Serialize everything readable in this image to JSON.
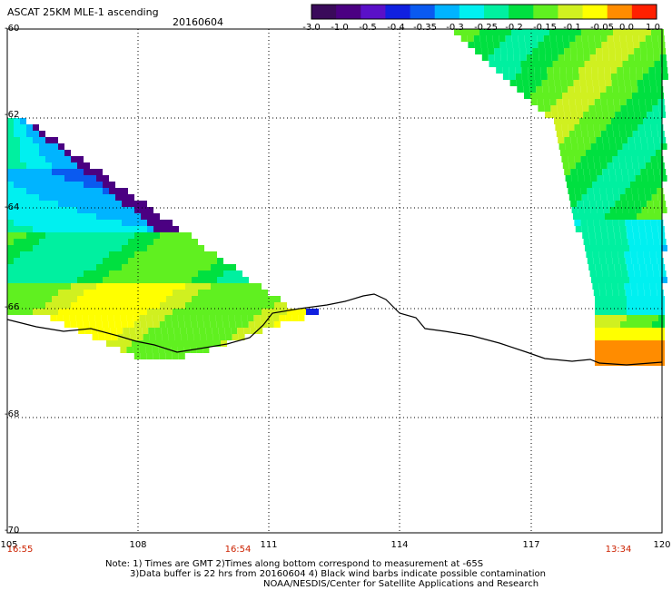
{
  "header": {
    "title": "ASCAT 25KM MLE-1 ascending",
    "date": "20160604"
  },
  "colorbar": {
    "tick_labels": [
      "-3.0",
      "-1.0",
      "-0.5",
      "-0.4",
      "-0.35",
      "-0.3",
      "-0.25",
      "-0.2",
      "-0.15",
      "-0.1",
      "-0.05",
      "0.0",
      "1.0"
    ],
    "colors": [
      "#3a0a5a",
      "#4b0082",
      "#5a10c8",
      "#1020e0",
      "#0a5af0",
      "#00b4ff",
      "#00f0f0",
      "#00f0a0",
      "#00e040",
      "#60f020",
      "#d0f020",
      "#ffff00",
      "#ff8c00",
      "#ff2000"
    ]
  },
  "map": {
    "lat_labels": [
      "-60",
      "-62",
      "-64",
      "-66",
      "-68",
      "-70"
    ],
    "lon_labels": [
      "105",
      "108",
      "111",
      "114",
      "117",
      "120"
    ],
    "time_labels": [
      "16:55",
      "16:54",
      "13:34"
    ],
    "coastline_color": "#000000",
    "grid": "dotted"
  },
  "notes": {
    "line1": "Note: 1) Times are GMT 2)Times along bottom correspond to measurement at -65S",
    "line2": "3)Data buffer is 22 hrs from 20160604 4) Black wind barbs indicate possible contamination",
    "line3": "NOAA/NESDIS/Center for Satellite Applications and Research"
  }
}
